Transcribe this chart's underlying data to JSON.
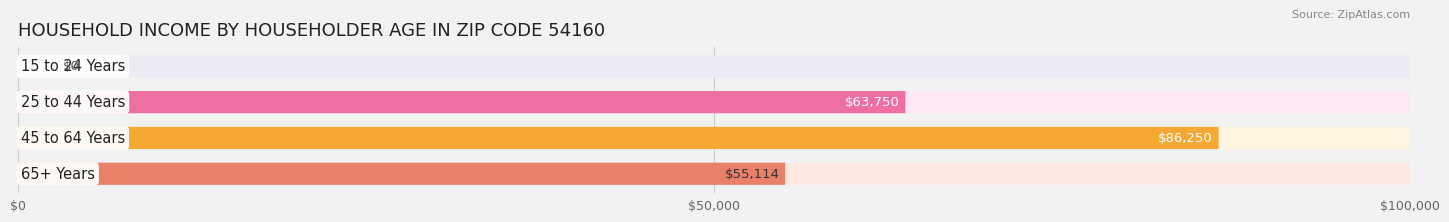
{
  "title": "HOUSEHOLD INCOME BY HOUSEHOLDER AGE IN ZIP CODE 54160",
  "source": "Source: ZipAtlas.com",
  "categories": [
    "15 to 24 Years",
    "25 to 44 Years",
    "45 to 64 Years",
    "65+ Years"
  ],
  "values": [
    0,
    63750,
    86250,
    55114
  ],
  "bar_colors": [
    "#b0aedd",
    "#ee6fa3",
    "#f5a832",
    "#e8806a"
  ],
  "bar_bg_colors": [
    "#ebebf5",
    "#fce8f2",
    "#fef4e0",
    "#fde8e2"
  ],
  "value_labels": [
    "$0",
    "$63,750",
    "$86,250",
    "$55,114"
  ],
  "value_label_colors": [
    "#666666",
    "#ffffff",
    "#ffffff",
    "#333333"
  ],
  "xmax": 100000,
  "xticks": [
    0,
    50000,
    100000
  ],
  "xticklabels": [
    "$0",
    "$50,000",
    "$100,000"
  ],
  "background_color": "#f2f2f2",
  "title_fontsize": 13,
  "label_fontsize": 10.5,
  "value_fontsize": 9.5,
  "tick_fontsize": 9
}
